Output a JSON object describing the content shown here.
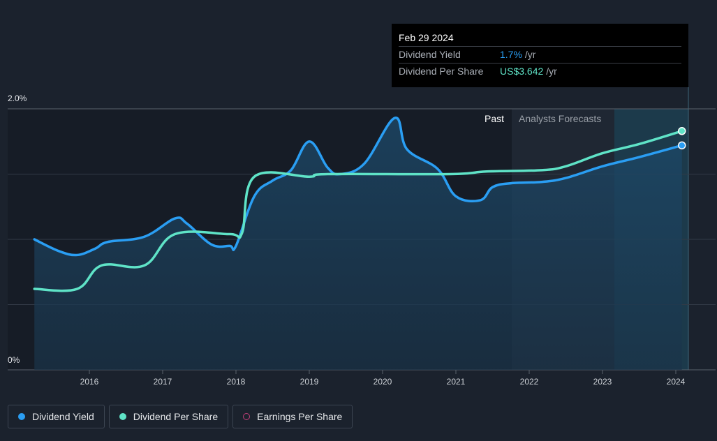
{
  "tooltip": {
    "date": "Feb 29 2024",
    "rows": [
      {
        "label": "Dividend Yield",
        "value": "1.7%",
        "unit": "/yr"
      },
      {
        "label": "Dividend Per Share",
        "value": "US$3.642",
        "unit": "/yr"
      }
    ]
  },
  "regions": {
    "past": "Past",
    "forecast": "Analysts Forecasts"
  },
  "legend": [
    {
      "label": "Dividend Yield",
      "color": "#2a9ef3",
      "style": "filled"
    },
    {
      "label": "Dividend Per Share",
      "color": "#5fe3c7",
      "style": "filled"
    },
    {
      "label": "Earnings Per Share",
      "color": "#c2407a",
      "style": "outline"
    }
  ],
  "chart_data": {
    "type": "line",
    "ylabels": [
      "2.0%",
      "0%"
    ],
    "ylim": [
      0,
      2.0
    ],
    "xticks": [
      "2016",
      "2017",
      "2018",
      "2019",
      "2020",
      "2021",
      "2022",
      "2023",
      "2024"
    ],
    "grid": true,
    "series": [
      {
        "name": "Dividend Yield",
        "color": "#2a9ef3",
        "fill": true,
        "points": [
          [
            "2015-04",
            1.0
          ],
          [
            "2015-08",
            0.91
          ],
          [
            "2015-11",
            0.88
          ],
          [
            "2016-02",
            0.93
          ],
          [
            "2016-04",
            0.98
          ],
          [
            "2016-10",
            1.02
          ],
          [
            "2017-03",
            1.16
          ],
          [
            "2017-05",
            1.12
          ],
          [
            "2017-09",
            0.96
          ],
          [
            "2017-12",
            0.95
          ],
          [
            "2018-01",
            0.95
          ],
          [
            "2018-04",
            1.33
          ],
          [
            "2018-07",
            1.45
          ],
          [
            "2018-10",
            1.53
          ],
          [
            "2019-01",
            1.75
          ],
          [
            "2019-04",
            1.55
          ],
          [
            "2019-06",
            1.5
          ],
          [
            "2019-10",
            1.58
          ],
          [
            "2020-03",
            1.93
          ],
          [
            "2020-05",
            1.69
          ],
          [
            "2020-10",
            1.54
          ],
          [
            "2021-01",
            1.33
          ],
          [
            "2021-05",
            1.3
          ],
          [
            "2021-07",
            1.4
          ],
          [
            "2021-10",
            1.43
          ],
          [
            "2022-03",
            1.44
          ],
          [
            "2022-07",
            1.47
          ],
          [
            "2023-01",
            1.56
          ],
          [
            "2023-07",
            1.63
          ],
          [
            "2024-02",
            1.72
          ]
        ]
      },
      {
        "name": "Dividend Per Share",
        "color": "#5fe3c7",
        "fill": false,
        "points": [
          [
            "2015-04",
            0.62
          ],
          [
            "2015-11",
            0.62
          ],
          [
            "2016-03",
            0.8
          ],
          [
            "2016-10",
            0.8
          ],
          [
            "2017-03",
            1.04
          ],
          [
            "2017-12",
            1.04
          ],
          [
            "2018-02",
            1.05
          ],
          [
            "2018-04",
            1.48
          ],
          [
            "2019-01",
            1.48
          ],
          [
            "2019-04",
            1.5
          ],
          [
            "2020-12",
            1.5
          ],
          [
            "2021-06",
            1.52
          ],
          [
            "2022-03",
            1.53
          ],
          [
            "2022-07",
            1.56
          ],
          [
            "2023-01",
            1.66
          ],
          [
            "2023-07",
            1.73
          ],
          [
            "2024-02",
            1.83
          ]
        ]
      }
    ]
  }
}
